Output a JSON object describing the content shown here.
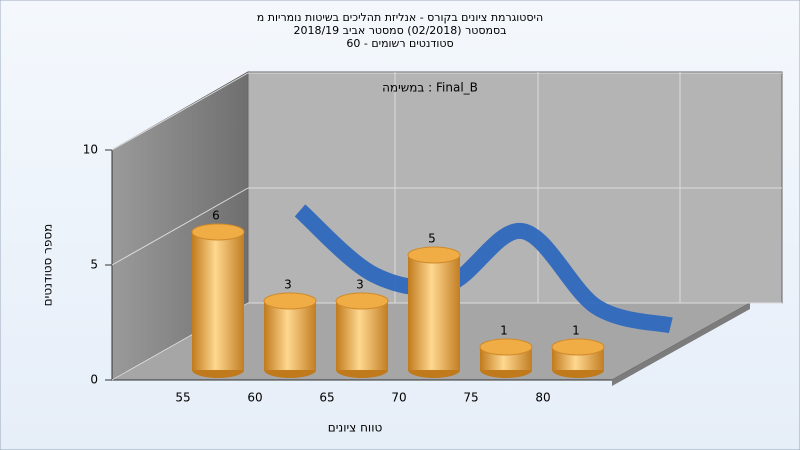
{
  "chart_data": {
    "type": "bar",
    "title": [
      "היסטוגרמת ציונים בקורס - אנליזת תהליכים בשיטות נומריות מ",
      "בסמסטר  (02/2018)  סמסטר אביב 2018/19",
      "סטודנטים רשומים - 60"
    ],
    "annotation": "במשימה : Final_B",
    "x_label": "טווח ציונים",
    "y_label": "מספר סטודנטים",
    "categories": [
      "55",
      "60",
      "65",
      "70",
      "75",
      "80"
    ],
    "series": [
      {
        "type": "bar",
        "color": "#e9a23b",
        "values": [
          6,
          3,
          3,
          5,
          1,
          1
        ]
      },
      {
        "type": "line",
        "color": "#2f68bd",
        "values": [
          5.2,
          2.4,
          2.0,
          4.3,
          1.0,
          0.2
        ]
      }
    ],
    "ylim": [
      0,
      10
    ],
    "yticks": [
      0,
      5,
      10
    ],
    "grid": true
  }
}
